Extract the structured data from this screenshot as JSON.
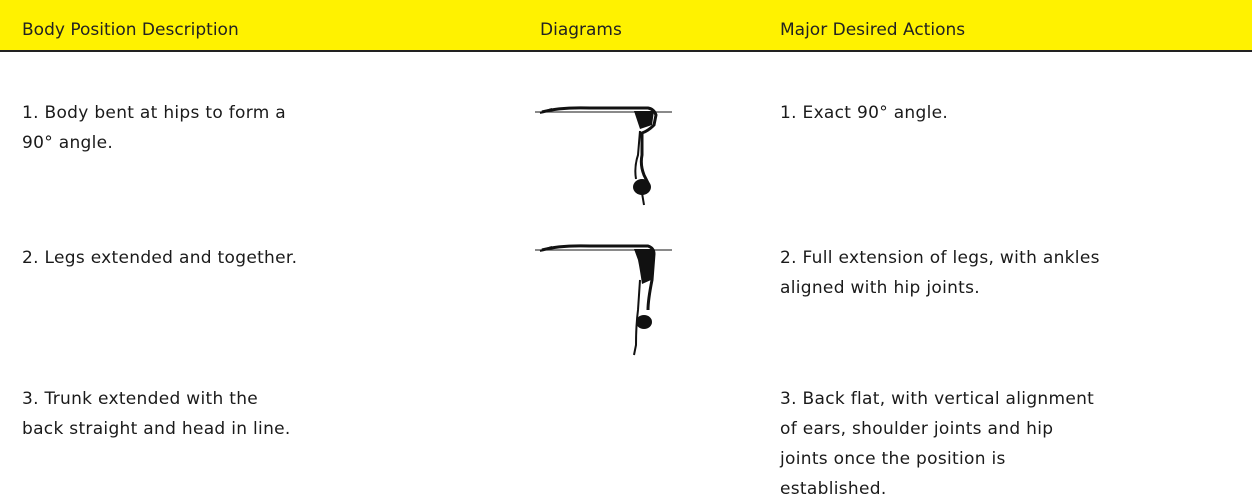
{
  "header": {
    "columns": [
      "Body Position Description",
      "Diagrams",
      "Major Desired Actions"
    ]
  },
  "table": {
    "rows": [
      {
        "description": [
          "1. Body bent at hips to form a",
          "90° angle."
        ],
        "actions": [
          "1. Exact 90° angle."
        ]
      },
      {
        "description": [
          "2. Legs extended and together."
        ],
        "actions": [
          "2. Full extension of legs, with ankles",
          "aligned with hip joints."
        ]
      },
      {
        "description": [
          "3. Trunk extended with the",
          "back straight and head in line."
        ],
        "actions": [
          "3. Back flat, with vertical alignment",
          "of ears, shoulder joints and hip",
          "joints once the position is",
          "established."
        ]
      }
    ]
  }
}
